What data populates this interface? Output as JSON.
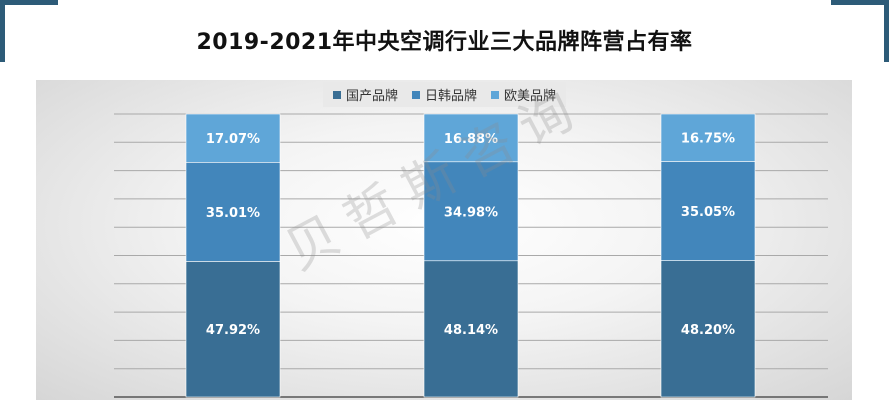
{
  "title": "2019-2021年中央空调行业三大品牌阵营占有率",
  "watermark": "贝哲斯咨询",
  "colors": {
    "domestic": "#396e94",
    "jpkr": "#4286bb",
    "euus": "#5fa6d8",
    "corner": "#2d5b78"
  },
  "chart_data": {
    "type": "bar",
    "stacked": true,
    "categories": [
      "",
      "",
      ""
    ],
    "series": [
      {
        "name": "国产品牌",
        "values": [
          47.92,
          48.14,
          48.2
        ],
        "labels": [
          "47.92%",
          "48.14%",
          "48.20%"
        ]
      },
      {
        "name": "日韩品牌",
        "values": [
          35.01,
          34.98,
          35.05
        ],
        "labels": [
          "35.01%",
          "34.98%",
          "35.05%"
        ]
      },
      {
        "name": "欧美品牌",
        "values": [
          17.07,
          16.88,
          16.75
        ],
        "labels": [
          "17.07%",
          "16.88%",
          "16.75%"
        ]
      }
    ],
    "ylim": [
      0,
      100
    ],
    "grid": true,
    "legend_position": "top"
  }
}
